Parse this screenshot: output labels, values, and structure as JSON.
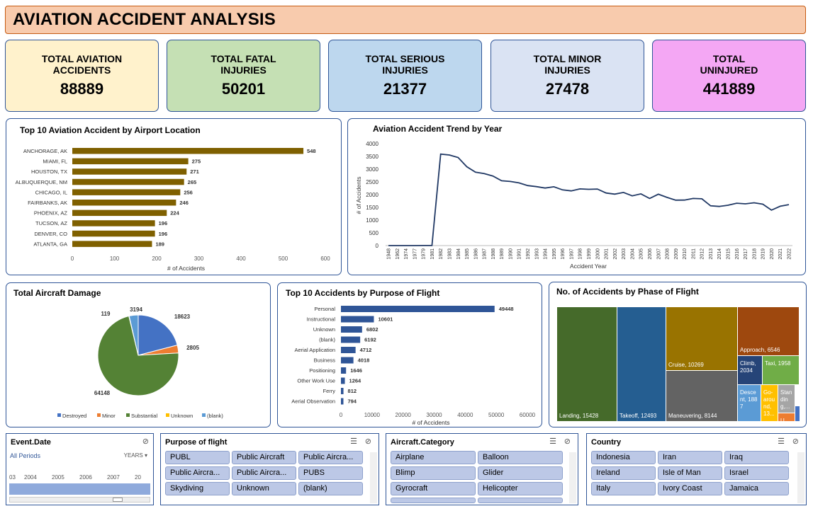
{
  "title": "AVIATION ACCIDENT ANALYSIS",
  "kpis": [
    {
      "label": "TOTAL AVIATION\nACCIDENTS",
      "value": "88889",
      "bg": "#fff2cc"
    },
    {
      "label": "TOTAL FATAL\nINJURIES",
      "value": "50201",
      "bg": "#c5e0b4"
    },
    {
      "label": "TOTAL SERIOUS\nINJURIES",
      "value": "21377",
      "bg": "#bdd7ee"
    },
    {
      "label": "TOTAL MINOR\nINJURIES",
      "value": "27478",
      "bg": "#dae3f3"
    },
    {
      "label": "TOTAL\nUNINJURED",
      "value": "441889",
      "bg": "#f4a7f4"
    }
  ],
  "airport_chart": {
    "title": "Top 10 Aviation Accident by Airport Location",
    "xlabel": "# of Accidents",
    "color": "#7f6000"
  },
  "trend_chart": {
    "title": "Aviation Accident Trend by Year",
    "xlabel": "Accident Year",
    "ylabel": "# of Accidents",
    "color": "#203864"
  },
  "damage_chart": {
    "title": "Total Aircraft Damage"
  },
  "purpose_chart": {
    "title": "Top 10 Accidents by Purpose of Flight",
    "xlabel": "# of Accidents",
    "color": "#2f5597"
  },
  "phase_chart": {
    "title": "No. of Accidents by Phase of Flight"
  },
  "chart_data": [
    {
      "type": "bar",
      "orientation": "horizontal",
      "categories": [
        "ANCHORAGE, AK",
        "MIAMI, FL",
        "HOUSTON, TX",
        "ALBUQUERQUE, NM",
        "CHICAGO, IL",
        "FAIRBANKS, AK",
        "PHOENIX, AZ",
        "TUCSON, AZ",
        "DENVER, CO",
        "ATLANTA, GA"
      ],
      "values": [
        548,
        275,
        271,
        265,
        256,
        246,
        224,
        196,
        196,
        189
      ],
      "title": "Top 10 Aviation Accident by Airport Location",
      "xlabel": "# of Accidents",
      "xlim": [
        0,
        600
      ],
      "xticks": [
        0,
        100,
        200,
        300,
        400,
        500,
        600
      ]
    },
    {
      "type": "line",
      "title": "Aviation Accident Trend by Year",
      "xlabel": "Accident Year",
      "ylabel": "# of Accidents",
      "ylim": [
        0,
        4000
      ],
      "yticks": [
        0,
        500,
        1000,
        1500,
        2000,
        2500,
        3000,
        3500,
        4000
      ],
      "x": [
        "1948",
        "1962",
        "1974",
        "1977",
        "1979",
        "1981",
        "1982",
        "1983",
        "1984",
        "1985",
        "1986",
        "1987",
        "1988",
        "1989",
        "1990",
        "1991",
        "1992",
        "1993",
        "1994",
        "1995",
        "1996",
        "1997",
        "1998",
        "1999",
        "2000",
        "2001",
        "2002",
        "2003",
        "2004",
        "2005",
        "2006",
        "2007",
        "2008",
        "2009",
        "2010",
        "2011",
        "2012",
        "2013",
        "2014",
        "2015",
        "2016",
        "2017",
        "2018",
        "2019",
        "2020",
        "2021",
        "2022"
      ],
      "values": [
        1,
        1,
        1,
        1,
        2,
        4,
        3593,
        3556,
        3457,
        3096,
        2880,
        2828,
        2730,
        2544,
        2518,
        2462,
        2355,
        2313,
        2257,
        2309,
        2187,
        2148,
        2226,
        2209,
        2220,
        2063,
        2020,
        2085,
        1952,
        2031,
        1851,
        2016,
        1893,
        1783,
        1786,
        1850,
        1835,
        1561,
        1535,
        1582,
        1664,
        1638,
        1681,
        1624,
        1392,
        1545,
        1607
      ]
    },
    {
      "type": "pie",
      "title": "Total Aircraft Damage",
      "categories": [
        "Destroyed",
        "Minor",
        "Substantial",
        "Unknown",
        "(blank)"
      ],
      "values": [
        18623,
        2805,
        64148,
        119,
        3194
      ],
      "colors": [
        "#4472c4",
        "#ed7d31",
        "#548235",
        "#ffc000",
        "#5b9bd5"
      ],
      "legend": "bottom"
    },
    {
      "type": "bar",
      "orientation": "horizontal",
      "title": "Top 10 Accidents by Purpose of Flight",
      "xlabel": "# of Accidents",
      "categories": [
        "Personal",
        "Instructional",
        "Unknown",
        "(blank)",
        "Aerial Application",
        "Business",
        "Positioning",
        "Other Work Use",
        "Ferry",
        "Aerial Observation"
      ],
      "values": [
        49448,
        10601,
        6802,
        6192,
        4712,
        4018,
        1646,
        1264,
        812,
        794
      ],
      "xlim": [
        0,
        60000
      ],
      "xticks": [
        0,
        10000,
        20000,
        30000,
        40000,
        50000,
        60000
      ]
    },
    {
      "type": "treemap",
      "title": "No. of Accidents by Phase of Flight",
      "items": [
        {
          "label": "Landing, 15428",
          "value": 15428,
          "color": "#456a2a"
        },
        {
          "label": "Takeoff, 12493",
          "value": 12493,
          "color": "#255e91"
        },
        {
          "label": "Cruise, 10269",
          "value": 10269,
          "color": "#997300"
        },
        {
          "label": "Maneuvering, 8144",
          "value": 8144,
          "color": "#636363"
        },
        {
          "label": "Approach, 6546",
          "value": 6546,
          "color": "#9e480e"
        },
        {
          "label": "Climb, 2034",
          "value": 2034,
          "color": "#264478"
        },
        {
          "label": "Taxi, 1958",
          "value": 1958,
          "color": "#70ad47"
        },
        {
          "label": "Descent, 1887",
          "value": 1887,
          "color": "#5b9bd5"
        },
        {
          "label": "Go-around, 13...",
          "value": 1350,
          "color": "#ffc000"
        },
        {
          "label": "Standing,...",
          "value": 945,
          "color": "#a5a5a5"
        },
        {
          "label": "U...",
          "value": 513,
          "color": "#ed7d31"
        },
        {
          "label": "",
          "value": 200,
          "color": "#4472c4"
        }
      ]
    }
  ],
  "slicers": {
    "event_date": {
      "title": "Event.Date",
      "periods": "All Periods",
      "unit": "YEARS",
      "ticks": [
        "03",
        "2004",
        "2005",
        "2006",
        "2007",
        "20"
      ]
    },
    "purpose": {
      "title": "Purpose of flight",
      "items": [
        "PUBL",
        "Public Aircraft",
        "Public Aircra...",
        "Public Aircra...",
        "Public Aircra...",
        "PUBS",
        "Skydiving",
        "Unknown",
        "(blank)"
      ]
    },
    "category": {
      "title": "Aircraft.Category",
      "items": [
        "Airplane",
        "Balloon",
        "Blimp",
        "Glider",
        "Gyrocraft",
        "Helicopter"
      ]
    },
    "country": {
      "title": "Country",
      "items": [
        "Indonesia",
        "Iran",
        "Iraq",
        "Ireland",
        "Isle of Man",
        "Israel",
        "Italy",
        "Ivory Coast",
        "Jamaica"
      ]
    }
  }
}
